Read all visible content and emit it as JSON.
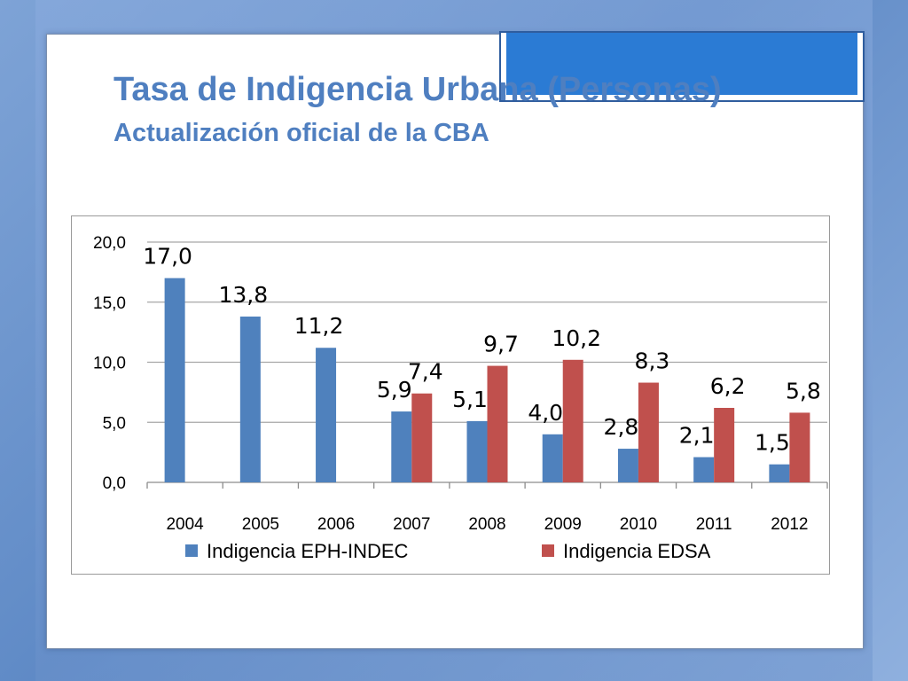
{
  "slide": {
    "title": "Tasa de Indigencia Urbana (Personas)",
    "subtitle": "Actualización oficial de la CBA"
  },
  "colors": {
    "title": "#4f7fc0",
    "series1": "#4f81bd",
    "series2": "#c0504d",
    "accent": "#2b7bd4"
  },
  "chart_data": {
    "type": "bar",
    "categories": [
      "2004",
      "2005",
      "2006",
      "2007",
      "2008",
      "2009",
      "2010",
      "2011",
      "2012"
    ],
    "series": [
      {
        "name": "Indigencia EPH-INDEC",
        "values": [
          17.0,
          13.8,
          11.2,
          5.9,
          5.1,
          4.0,
          2.8,
          2.1,
          1.5
        ],
        "labels": [
          "17,0",
          "13,8",
          "11,2",
          "5,9",
          "5,1",
          "4,0",
          "2,8",
          "2,1",
          "1,5"
        ]
      },
      {
        "name": "Indigencia EDSA",
        "values": [
          null,
          null,
          null,
          7.4,
          9.7,
          10.2,
          8.3,
          6.2,
          5.8
        ],
        "labels": [
          "",
          "",
          "",
          "7,4",
          "9,7",
          "10,2",
          "8,3",
          "6,2",
          "5,8"
        ]
      }
    ],
    "yticks": [
      "0,0",
      "5,0",
      "10,0",
      "15,0",
      "20,0"
    ],
    "ylim": [
      0,
      20
    ],
    "grid": true,
    "legend": "bottom"
  }
}
